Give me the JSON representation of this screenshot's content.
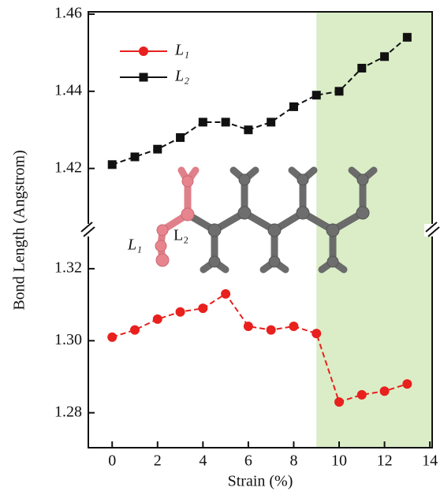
{
  "chart_data": {
    "type": "line",
    "x_label": "Strain (%)",
    "y_label": "Bond Length (Angstrom)",
    "x": [
      0,
      1,
      2,
      3,
      4,
      5,
      6,
      7,
      8,
      9,
      10,
      11,
      12,
      13
    ],
    "xlim": [
      -1.05,
      14.1
    ],
    "xticks": [
      0,
      2,
      4,
      6,
      8,
      10,
      12,
      14
    ],
    "y_segments": [
      {
        "ylim": [
          1.404,
          1.4606
        ],
        "yticks": [
          1.42,
          1.44,
          1.46
        ]
      },
      {
        "ylim": [
          1.2703,
          1.3307
        ],
        "yticks": [
          1.28,
          {
            "value": 1.3,
            "label": "1.30"
          },
          1.32
        ]
      }
    ],
    "highlight": {
      "xrange": [
        9,
        14.1
      ],
      "color": "#daedc6"
    },
    "legend": "upper left",
    "series": [
      {
        "name": "L₁",
        "color": "#e8201e",
        "marker": "circle",
        "segment": 1,
        "values": [
          1.301,
          1.303,
          1.306,
          1.308,
          1.309,
          1.313,
          1.304,
          1.303,
          1.304,
          1.302,
          1.283,
          1.285,
          1.286,
          1.288
        ]
      },
      {
        "name": "L₂",
        "color": "#111111",
        "marker": "square",
        "segment": 0,
        "values": [
          1.421,
          1.423,
          1.425,
          1.428,
          1.432,
          1.432,
          1.43,
          1.432,
          1.436,
          1.439,
          1.44,
          1.446,
          1.449,
          1.454
        ]
      }
    ],
    "annotations": [
      {
        "text": "L₁",
        "color": "#e06070"
      },
      {
        "text": "L₂",
        "color": "#222222"
      }
    ]
  }
}
